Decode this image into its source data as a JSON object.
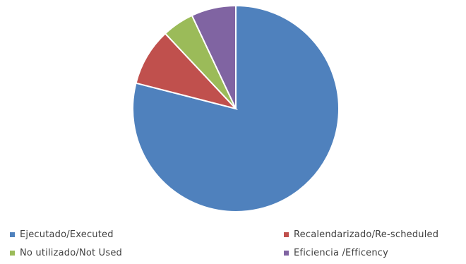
{
  "chart_data": {
    "type": "pie",
    "title": "",
    "legend_position": "bottom",
    "start": "12 o'clock, clockwise",
    "slices": [
      {
        "label": "Ejecutado/Executed",
        "value": 79,
        "color": "#4F81BD"
      },
      {
        "label": "Recalendarizado/Re-scheduled",
        "value": 9,
        "color": "#C0504D"
      },
      {
        "label": "No utilizado/Not Used",
        "value": 5,
        "color": "#9BBB59"
      },
      {
        "label": "Eficiencia /Efficency",
        "value": 7,
        "color": "#8064A2"
      }
    ]
  }
}
